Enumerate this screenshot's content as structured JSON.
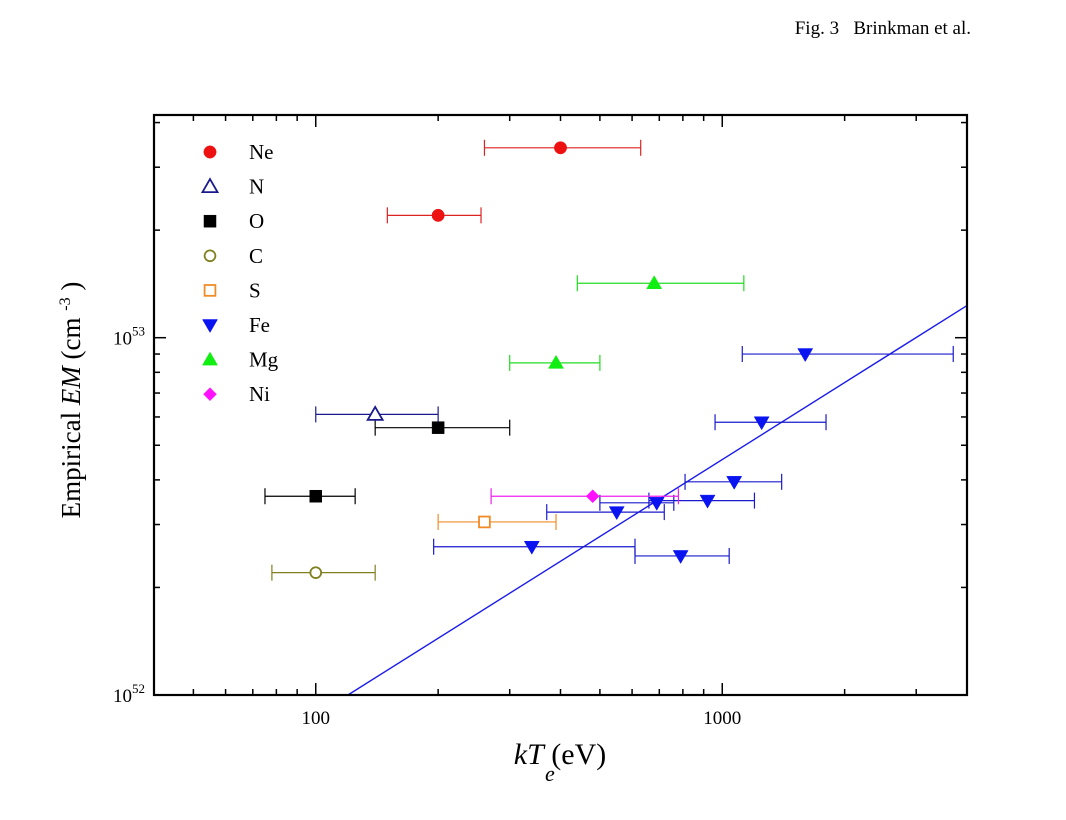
{
  "caption": "Fig. 3   Brinkman et al.",
  "chart_data": {
    "type": "scatter",
    "xscale": "log",
    "yscale": "log",
    "xlim": [
      40,
      4000
    ],
    "ylim": [
      1e+52,
      4.2e+53
    ],
    "xlabel": {
      "italic_main": "kT",
      "italic_sub": "e",
      "unit": " (eV)"
    },
    "ylabel": {
      "prefix": "Empirical ",
      "italic": "EM",
      "unit_open": "  (cm",
      "unit_sup": "-3",
      "unit_close": ")"
    },
    "x_tick_labels": [
      {
        "value": 100,
        "label": "100"
      },
      {
        "value": 1000,
        "label": "1000"
      }
    ],
    "y_tick_labels": [
      {
        "value": 1e+52,
        "base": "10",
        "exp": "52"
      },
      {
        "value": 1e+53,
        "base": "10",
        "exp": "53"
      }
    ],
    "legend_position": "top-left",
    "series": [
      {
        "name": "Ne",
        "marker": "circle",
        "filled": true,
        "color": "#ee1111",
        "errcolor": "#dd2222",
        "points": [
          {
            "x": 200,
            "y": 2.2e+53,
            "xerr": [
              150,
              255
            ]
          },
          {
            "x": 400,
            "y": 3.4e+53,
            "xerr": [
              260,
              630
            ]
          }
        ]
      },
      {
        "name": "N",
        "marker": "triangle-up",
        "filled": false,
        "color": "#1a1a8c",
        "errcolor": "#1a1a8c",
        "points": [
          {
            "x": 140,
            "y": 6.1e+52,
            "xerr": [
              100,
              200
            ]
          }
        ]
      },
      {
        "name": "O",
        "marker": "square",
        "filled": true,
        "color": "#000000",
        "errcolor": "#000000",
        "points": [
          {
            "x": 100,
            "y": 3.6e+52,
            "xerr": [
              75,
              125
            ]
          },
          {
            "x": 200,
            "y": 5.6e+52,
            "xerr": [
              140,
              300
            ]
          }
        ]
      },
      {
        "name": "C",
        "marker": "circle",
        "filled": false,
        "color": "#808020",
        "errcolor": "#808020",
        "points": [
          {
            "x": 100,
            "y": 2.2e+52,
            "xerr": [
              78,
              140
            ]
          }
        ]
      },
      {
        "name": "S",
        "marker": "square",
        "filled": false,
        "color": "#f08c28",
        "errcolor": "#f08c28",
        "points": [
          {
            "x": 260,
            "y": 3.05e+52,
            "xerr": [
              200,
              390
            ]
          }
        ]
      },
      {
        "name": "Fe",
        "marker": "triangle-down",
        "filled": true,
        "color": "#0a14f0",
        "errcolor": "#1a1acc",
        "points": [
          {
            "x": 1600,
            "y": 9e+52,
            "xerr": [
              1120,
              3700
            ]
          },
          {
            "x": 1250,
            "y": 5.8e+52,
            "xerr": [
              960,
              1800
            ]
          },
          {
            "x": 1070,
            "y": 3.95e+52,
            "xerr": [
              810,
              1400
            ]
          },
          {
            "x": 920,
            "y": 3.5e+52,
            "xerr": [
              660,
              1200
            ]
          },
          {
            "x": 690,
            "y": 3.45e+52,
            "xerr": [
              500,
              760
            ]
          },
          {
            "x": 550,
            "y": 3.25e+52,
            "xerr": [
              370,
              720
            ]
          },
          {
            "x": 340,
            "y": 2.6e+52,
            "xerr": [
              195,
              610
            ]
          },
          {
            "x": 790,
            "y": 2.45e+52,
            "xerr": [
              610,
              1040
            ]
          }
        ]
      },
      {
        "name": "Mg",
        "marker": "triangle-up",
        "filled": true,
        "color": "#11ee11",
        "errcolor": "#22dd22",
        "points": [
          {
            "x": 390,
            "y": 8.5e+52,
            "xerr": [
              300,
              500
            ]
          },
          {
            "x": 680,
            "y": 1.42e+53,
            "xerr": [
              440,
              1130
            ]
          }
        ]
      },
      {
        "name": "Ni",
        "marker": "diamond",
        "filled": true,
        "color": "#ff11ff",
        "errcolor": "#ee22ee",
        "points": [
          {
            "x": 480,
            "y": 3.6e+52,
            "xerr": [
              270,
              780
            ]
          }
        ]
      }
    ],
    "fit_line": {
      "color": "#1a1aee",
      "points": [
        {
          "x": 120,
          "y": 1e+52
        },
        {
          "x": 4000,
          "y": 1.23e+53
        }
      ]
    }
  }
}
